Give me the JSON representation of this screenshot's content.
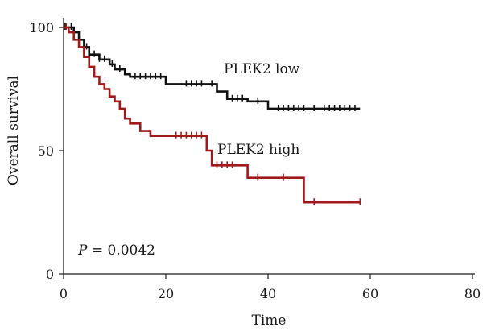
{
  "chart_data": {
    "type": "line",
    "title": "",
    "xlabel": "Time",
    "ylabel": "Overall survival",
    "xlim": [
      0,
      80
    ],
    "ylim": [
      0,
      100
    ],
    "xticks": [
      "0",
      "20",
      "40",
      "60",
      "80"
    ],
    "yticks": [
      "0",
      "50",
      "100"
    ],
    "grid": false,
    "annotation": {
      "italic": "P",
      "rest": " = 0.0042"
    },
    "series": [
      {
        "name": "PLEK2 low",
        "color": "#111111",
        "steps": [
          [
            0,
            100
          ],
          [
            2,
            98
          ],
          [
            3,
            95
          ],
          [
            4,
            92
          ],
          [
            5,
            89
          ],
          [
            7,
            87
          ],
          [
            9,
            85
          ],
          [
            10,
            83
          ],
          [
            12,
            81
          ],
          [
            13,
            80
          ],
          [
            20,
            77
          ],
          [
            30,
            74
          ],
          [
            32,
            71
          ],
          [
            36,
            70
          ],
          [
            40,
            67
          ],
          [
            58,
            67
          ]
        ],
        "censors": [
          0.3,
          1.5,
          4.5,
          6,
          7,
          8,
          9.5,
          11,
          14,
          15,
          16,
          17,
          18,
          19,
          24,
          25,
          26,
          27,
          29,
          33,
          34,
          35,
          38,
          42,
          43,
          44,
          45,
          46,
          47,
          49,
          51,
          52,
          53,
          54,
          55,
          56,
          57
        ]
      },
      {
        "name": "PLEK2 high",
        "color": "#a11a1a",
        "steps": [
          [
            0,
            100
          ],
          [
            1,
            98
          ],
          [
            2,
            95
          ],
          [
            3,
            92
          ],
          [
            4,
            88
          ],
          [
            5,
            84
          ],
          [
            6,
            80
          ],
          [
            7,
            77
          ],
          [
            8,
            75
          ],
          [
            9,
            72
          ],
          [
            10,
            70
          ],
          [
            11,
            67
          ],
          [
            12,
            63
          ],
          [
            13,
            61
          ],
          [
            15,
            58
          ],
          [
            17,
            56
          ],
          [
            28,
            50
          ],
          [
            29,
            44
          ],
          [
            36,
            39
          ],
          [
            47,
            29
          ],
          [
            58,
            29
          ]
        ],
        "censors": [
          0.5,
          22,
          23,
          24,
          25,
          26,
          27,
          30,
          31,
          32,
          33,
          38,
          43,
          49,
          58
        ]
      }
    ]
  }
}
